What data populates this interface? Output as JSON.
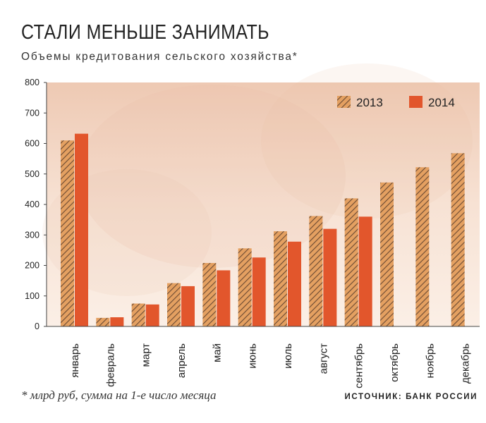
{
  "title": "СТАЛИ МЕНЬШЕ ЗАНИМАТЬ",
  "subtitle": "Объемы кредитования сельского хозяйства*",
  "footnote": "* млрд руб, сумма на 1-е число месяца",
  "source": "ИСТОЧНИК: БАНК РОССИИ",
  "colors": {
    "series_2013": "#e4a061",
    "series_2013_hatch": "#6b4a33",
    "series_2014": "#e2562c",
    "background_tint": "#f6dccb"
  },
  "chart_data": {
    "type": "bar",
    "categories": [
      "январь",
      "февраль",
      "март",
      "апрель",
      "май",
      "июнь",
      "июль",
      "август",
      "сентябрь",
      "октябрь",
      "ноябрь",
      "декабрь"
    ],
    "series": [
      {
        "name": "2013",
        "values": [
          610,
          28,
          75,
          142,
          208,
          256,
          312,
          362,
          420,
          472,
          522,
          568
        ]
      },
      {
        "name": "2014",
        "values": [
          632,
          30,
          72,
          132,
          184,
          226,
          278,
          320,
          360,
          null,
          null,
          null
        ]
      }
    ],
    "ylim": [
      0,
      800
    ],
    "yticks": [
      "0",
      "100",
      "200",
      "300",
      "400",
      "500",
      "600",
      "700",
      "800"
    ],
    "legend_position": "top-right",
    "grid": false
  }
}
